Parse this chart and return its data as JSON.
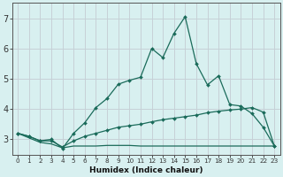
{
  "xlabel": "Humidex (Indice chaleur)",
  "x_values": [
    0,
    1,
    2,
    3,
    4,
    5,
    6,
    7,
    8,
    9,
    10,
    11,
    12,
    13,
    14,
    15,
    16,
    17,
    18,
    19,
    20,
    21,
    22,
    23
  ],
  "line1_y": [
    3.2,
    3.1,
    2.95,
    3.0,
    2.7,
    3.2,
    3.55,
    4.05,
    4.35,
    4.82,
    4.95,
    5.05,
    6.0,
    5.7,
    6.5,
    7.05,
    5.5,
    4.8,
    5.1,
    4.15,
    4.1,
    3.85,
    3.4,
    2.78
  ],
  "line2_y": [
    3.2,
    3.1,
    2.95,
    2.95,
    2.75,
    2.95,
    3.1,
    3.2,
    3.3,
    3.4,
    3.45,
    3.5,
    3.58,
    3.65,
    3.7,
    3.75,
    3.8,
    3.88,
    3.93,
    3.97,
    4.0,
    4.05,
    3.9,
    2.78
  ],
  "line3_y": [
    3.2,
    3.05,
    2.9,
    2.85,
    2.72,
    2.78,
    2.78,
    2.78,
    2.8,
    2.8,
    2.8,
    2.78,
    2.78,
    2.78,
    2.78,
    2.78,
    2.78,
    2.78,
    2.78,
    2.78,
    2.78,
    2.78,
    2.78,
    2.78
  ],
  "line_color": "#1a6b5a",
  "bg_color": "#d8f0f0",
  "grid_major_color": "#c0dede",
  "grid_minor_color": "#d0e8e8",
  "ylim": [
    2.5,
    7.5
  ],
  "yticks": [
    3,
    4,
    5,
    6,
    7
  ],
  "xlim": [
    -0.5,
    23.5
  ]
}
